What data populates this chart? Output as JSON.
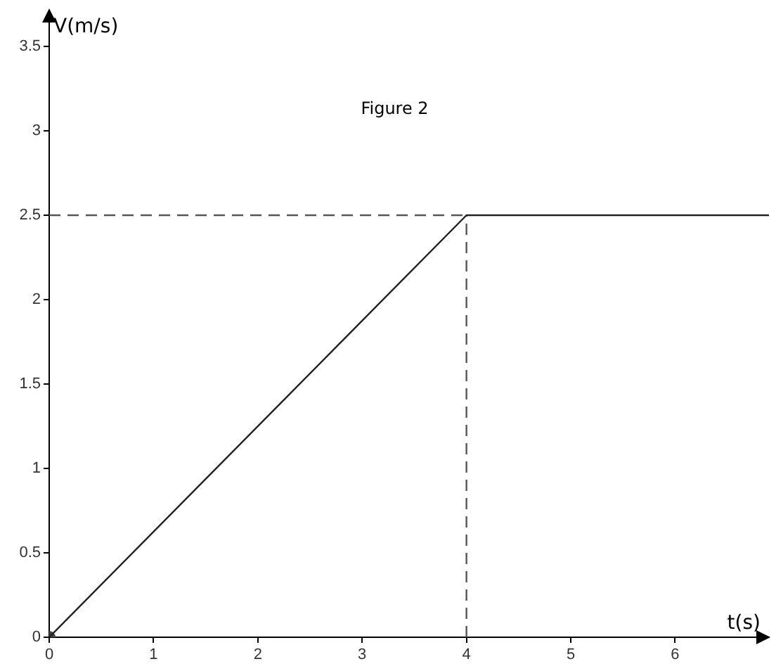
{
  "chart_data": {
    "type": "line",
    "annotations": [
      "Figure 2"
    ],
    "xlabel": "t(s)",
    "ylabel": "V(m/s)",
    "xlim": [
      0,
      6.9
    ],
    "ylim": [
      0,
      3.65
    ],
    "xticks": [
      0,
      1,
      2,
      3,
      4,
      5,
      6
    ],
    "yticks": [
      0,
      0.5,
      1,
      1.5,
      2,
      2.5,
      3,
      3.5
    ],
    "grid": false,
    "legend": false,
    "marker": "none",
    "series": [
      {
        "color": "#222222",
        "x": [
          0,
          4,
          6.9
        ],
        "values": [
          0,
          2.5,
          2.5
        ],
        "line_style": "solid"
      },
      {
        "color": "#555555",
        "x": [
          0,
          4
        ],
        "values": [
          2.5,
          2.5
        ],
        "line_style": "dashed"
      },
      {
        "color": "#555555",
        "x": [
          4,
          4
        ],
        "values": [
          0,
          2.5
        ],
        "line_style": "dashed"
      },
      {
        "type": "scatter",
        "color": "#444444",
        "x": [
          0
        ],
        "values": [
          0
        ],
        "marker": "circle"
      }
    ]
  }
}
